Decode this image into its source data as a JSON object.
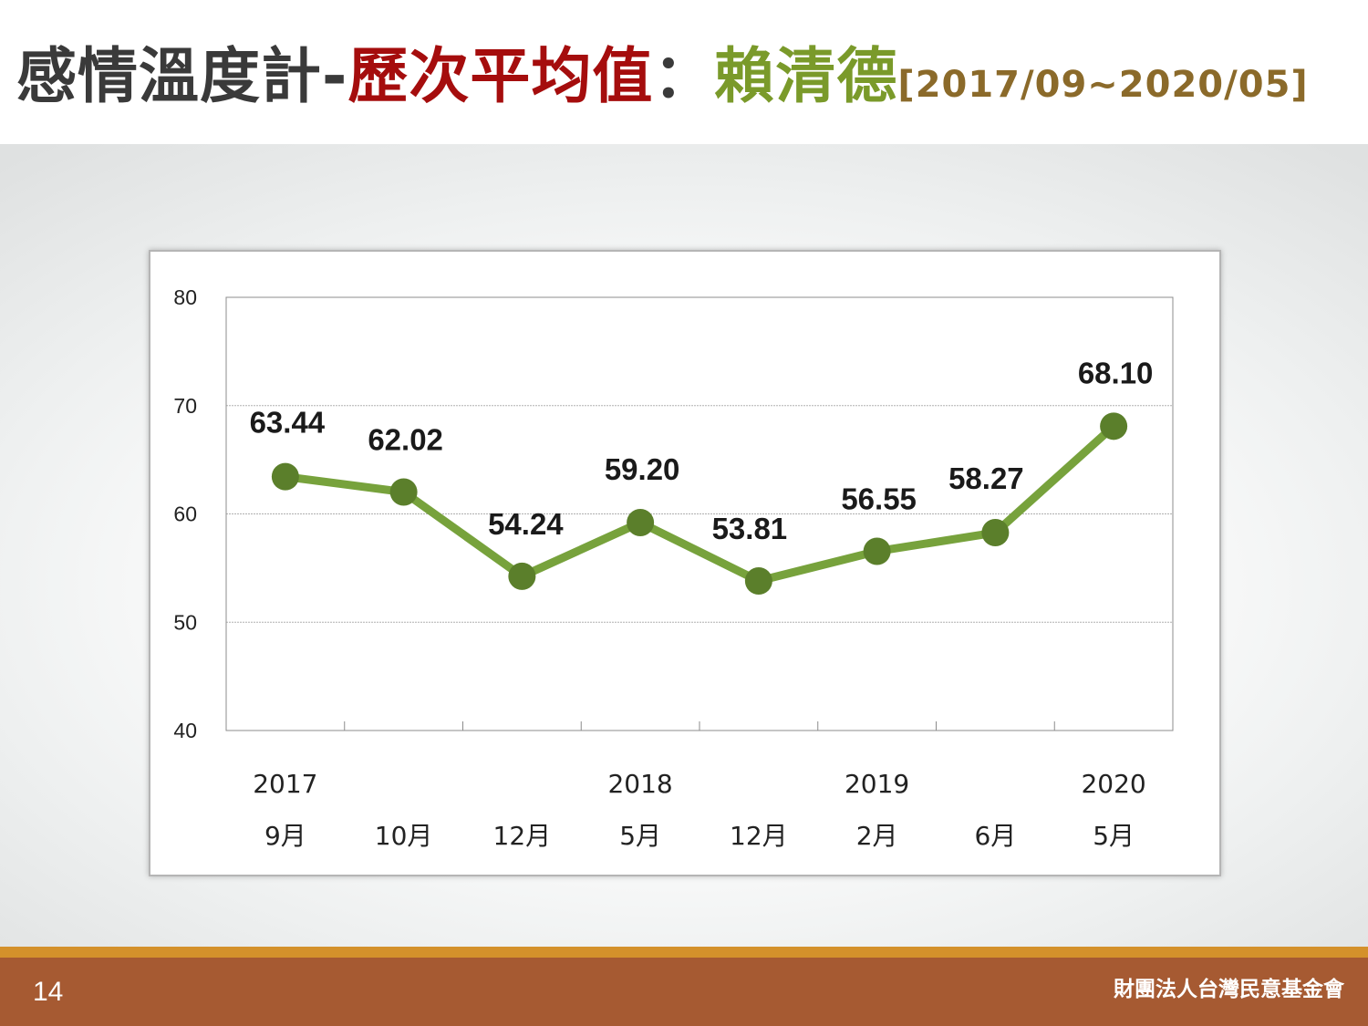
{
  "title": {
    "part1": "感情溫度計-",
    "part2": "歷次平均值",
    "part3": "：",
    "part4": "賴清德",
    "part5": "[2017/09~2020/05]"
  },
  "footer": {
    "page_number": "14",
    "organization": "財團法人台灣民意基金會"
  },
  "colors": {
    "line": "#77a23c",
    "marker": "#5b7f2b",
    "footer_bar": "#a65a32",
    "footer_stripe": "#d4912b"
  },
  "chart_data": {
    "type": "line",
    "title": "",
    "xlabel": "",
    "ylabel": "",
    "ylim": [
      40,
      80
    ],
    "yticks": [
      "40",
      "50",
      "60",
      "70",
      "80"
    ],
    "grid": true,
    "years": [
      "2017",
      "",
      "",
      "2018",
      "",
      "2019",
      "",
      "2020"
    ],
    "months": [
      "9月",
      "10月",
      "12月",
      "5月",
      "12月",
      "2月",
      "6月",
      "5月"
    ],
    "values": [
      63.44,
      62.02,
      54.24,
      59.2,
      53.81,
      56.55,
      58.27,
      68.1
    ],
    "value_labels": [
      "63.44",
      "62.02",
      "54.24",
      "59.20",
      "53.81",
      "56.55",
      "58.27",
      "68.10"
    ]
  }
}
